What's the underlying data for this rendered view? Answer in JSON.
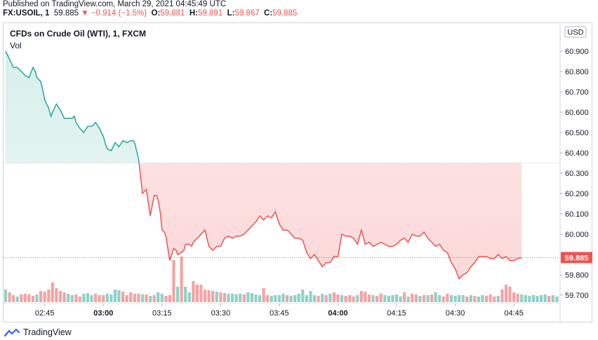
{
  "header": {
    "published": "Published on TradingView.com, March 29, 2021 04:45:49 UTC",
    "symbol": "FX:USOIL, 1",
    "price": "59.885",
    "change_arrow": "▼",
    "change": "−0.914 (−1.5%)",
    "open_label": "O:",
    "open": "59.881",
    "high_label": "H:",
    "high": "59.891",
    "low_label": "L:",
    "low": "59.867",
    "close_label": "C:",
    "close": "59.885"
  },
  "legend": {
    "title": "CFDs on Crude Oil (WTI), 1, FXCM",
    "vol": "Vol"
  },
  "footer": {
    "brand": "TradingView"
  },
  "colors": {
    "up": "#26a69a",
    "down": "#ef5350",
    "up_fill": "#e0f3f1",
    "down_fill": "#fde4e4",
    "vol_up": "#8fd1c9",
    "vol_down": "#f5a3a3"
  },
  "chart_data": {
    "type": "area",
    "title": "CFDs on Crude Oil (WTI), 1, FXCM",
    "currency": "USD",
    "baseline": 60.35,
    "last_price": 59.885,
    "last_price_label": "59.885",
    "ylim": [
      59.66,
      60.97
    ],
    "y_ticks": [
      "60.900",
      "60.800",
      "60.700",
      "60.600",
      "60.500",
      "60.400",
      "60.300",
      "60.200",
      "60.100",
      "60.000",
      "59.800",
      "59.700"
    ],
    "x_ticks": [
      {
        "label": "02:45",
        "minute": 10,
        "bold": false
      },
      {
        "label": "03:00",
        "minute": 25,
        "bold": true
      },
      {
        "label": "03:15",
        "minute": 40,
        "bold": false
      },
      {
        "label": "03:30",
        "minute": 55,
        "bold": false
      },
      {
        "label": "03:45",
        "minute": 70,
        "bold": false
      },
      {
        "label": "04:00",
        "minute": 85,
        "bold": true
      },
      {
        "label": "04:15",
        "minute": 100,
        "bold": false
      },
      {
        "label": "04:30",
        "minute": 115,
        "bold": false
      },
      {
        "label": "04:45",
        "minute": 130,
        "bold": false
      }
    ],
    "series": [
      {
        "name": "USOIL",
        "x": [
          0,
          1,
          2,
          3,
          4,
          4.6,
          5,
          6,
          7,
          7.6,
          8,
          9,
          9.6,
          10,
          11,
          11.6,
          12,
          13,
          14,
          15,
          16,
          17,
          17.6,
          18,
          19,
          20,
          21,
          22,
          22.6,
          23,
          24,
          25,
          25.6,
          26,
          27,
          28,
          29,
          30,
          31,
          32,
          32.6,
          33,
          34,
          35,
          36,
          37,
          38,
          38.6,
          39,
          39.6,
          40,
          40.6,
          41,
          42,
          43,
          43.6,
          44,
          45,
          45.6,
          46,
          47,
          47.6,
          48,
          49,
          50,
          51,
          52,
          53,
          54,
          55,
          56,
          57,
          58,
          59,
          60,
          61,
          62,
          63,
          64,
          65,
          66,
          67,
          68,
          69,
          70,
          71,
          72,
          72.6,
          73,
          74,
          75,
          76,
          77,
          78,
          79,
          80,
          81,
          82,
          83,
          84,
          85,
          86,
          87,
          88,
          89,
          90,
          91,
          92,
          93,
          94,
          95,
          96,
          97,
          98,
          99,
          100,
          101,
          102,
          103,
          104,
          105,
          106,
          107,
          108,
          109,
          110,
          111,
          112,
          113,
          114,
          115,
          116,
          117,
          118,
          119,
          120,
          121,
          122,
          123,
          124,
          125,
          126,
          127,
          128,
          129,
          130,
          131,
          132
        ],
        "values": [
          60.9,
          60.86,
          60.82,
          60.82,
          60.8,
          60.79,
          60.78,
          60.77,
          60.82,
          60.8,
          60.77,
          60.75,
          60.7,
          60.66,
          60.62,
          60.58,
          60.6,
          60.64,
          60.61,
          60.57,
          60.57,
          60.57,
          60.58,
          60.55,
          60.52,
          60.5,
          60.53,
          60.53,
          60.54,
          60.55,
          60.52,
          60.48,
          60.44,
          60.42,
          60.41,
          60.45,
          60.43,
          60.46,
          60.45,
          60.46,
          60.46,
          60.45,
          60.37,
          60.2,
          60.22,
          60.09,
          60.19,
          60.19,
          60.17,
          60.1,
          60.02,
          60.01,
          59.99,
          59.87,
          59.93,
          59.92,
          59.9,
          59.91,
          59.92,
          59.95,
          59.95,
          59.94,
          59.96,
          59.98,
          60.0,
          60.02,
          59.94,
          59.92,
          59.94,
          59.94,
          59.98,
          59.99,
          59.98,
          59.99,
          59.99,
          60.0,
          60.02,
          60.04,
          60.06,
          60.09,
          60.07,
          60.09,
          60.08,
          60.11,
          60.05,
          60.02,
          60.02,
          60.01,
          60.0,
          59.98,
          59.98,
          59.97,
          59.91,
          59.88,
          59.9,
          59.87,
          59.84,
          59.86,
          59.86,
          59.89,
          59.89,
          60.0,
          59.99,
          59.99,
          59.98,
          59.95,
          60.02,
          59.95,
          59.96,
          59.94,
          59.95,
          59.96,
          59.95,
          59.94,
          59.94,
          59.95,
          59.97,
          59.98,
          59.96,
          60.0,
          59.99,
          59.99,
          60.01,
          59.98,
          59.96,
          59.94,
          59.95,
          59.92,
          59.91,
          59.86,
          59.83,
          59.78,
          59.8,
          59.81,
          59.84,
          59.86,
          59.89,
          59.89,
          59.89,
          59.88,
          59.88,
          59.9,
          59.88,
          59.89,
          59.87,
          59.87,
          59.88,
          59.885
        ]
      }
    ],
    "volume": {
      "ylim": [
        0,
        100
      ],
      "values": [
        18,
        14,
        10,
        8,
        11,
        12,
        11,
        9,
        11,
        16,
        15,
        18,
        28,
        20,
        16,
        14,
        12,
        10,
        11,
        8,
        12,
        13,
        10,
        12,
        10,
        10,
        12,
        11,
        18,
        17,
        15,
        10,
        14,
        12,
        12,
        11,
        11,
        9,
        10,
        14,
        12,
        9,
        10,
        60,
        22,
        65,
        22,
        14,
        30,
        25,
        25,
        18,
        17,
        16,
        15,
        14,
        13,
        12,
        12,
        11,
        12,
        11,
        14,
        13,
        11,
        10,
        20,
        10,
        9,
        10,
        10,
        12,
        10,
        9,
        10,
        12,
        18,
        10,
        16,
        10,
        9,
        12,
        10,
        12,
        14,
        11,
        10,
        9,
        10,
        8,
        10,
        16,
        15,
        11,
        10,
        9,
        12,
        10,
        9,
        10,
        11,
        8,
        14,
        8,
        12,
        11,
        9,
        10,
        10,
        11,
        14,
        10,
        8,
        12,
        10,
        9,
        10,
        10,
        8,
        10,
        9,
        8,
        10,
        9,
        11,
        8,
        9,
        18,
        25,
        22,
        14,
        12,
        11,
        10,
        9,
        10,
        9,
        10,
        11,
        9,
        10,
        8,
        9,
        8,
        7,
        8,
        7,
        7,
        6,
        6,
        5
      ]
    }
  }
}
